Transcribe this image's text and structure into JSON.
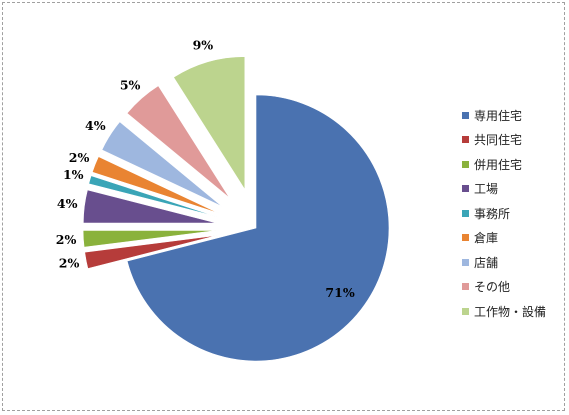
{
  "chart_data": {
    "type": "pie",
    "title": "",
    "legend_position": "right",
    "categories": [
      "専用住宅",
      "共同住宅",
      "併用住宅",
      "工場",
      "事務所",
      "倉庫",
      "店舗",
      "その他",
      "工作物・設備"
    ],
    "values": [
      71,
      2,
      2,
      4,
      1,
      2,
      4,
      5,
      9
    ],
    "labels": [
      "71%",
      "2%",
      "2%",
      "4%",
      "1%",
      "2%",
      "4%",
      "5%",
      "9%"
    ],
    "colors": [
      "#4a72b0",
      "#b63c3a",
      "#8ab23c",
      "#684e8e",
      "#3aa5b7",
      "#e98432",
      "#9eb7df",
      "#e09a99",
      "#bcd48e"
    ]
  }
}
